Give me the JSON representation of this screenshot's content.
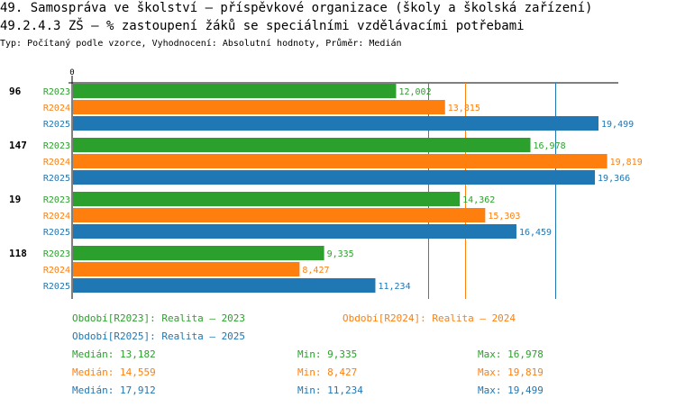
{
  "title_line1": "49. Samospráva ve školství – příspěvkové organizace (školy a školská zařízení)",
  "title_line2": "49.2.4.3 ZŠ – % zastoupení žáků se speciálními vzdělávacími potřebami",
  "subtitle": "Typ: Počítaný podle vzorce, Vyhodnocení: Absolutní hodnoty, Průměr: Medián",
  "colors": {
    "R2023": "#2ca02c",
    "R2024": "#ff7f0e",
    "R2025": "#1f77b4",
    "text": "#000000"
  },
  "chart_data": {
    "type": "bar",
    "orientation": "horizontal",
    "axis_zero_label": "0",
    "xlim": [
      0,
      20500
    ],
    "groups": [
      {
        "label": "96",
        "bars": [
          {
            "series": "R2023",
            "value": 12002,
            "label": "12,002"
          },
          {
            "series": "R2024",
            "value": 13815,
            "label": "13,815"
          },
          {
            "series": "R2025",
            "value": 19499,
            "label": "19,499"
          }
        ]
      },
      {
        "label": "147",
        "bars": [
          {
            "series": "R2023",
            "value": 16978,
            "label": "16,978"
          },
          {
            "series": "R2024",
            "value": 19819,
            "label": "19,819"
          },
          {
            "series": "R2025",
            "value": 19366,
            "label": "19,366"
          }
        ]
      },
      {
        "label": "19",
        "bars": [
          {
            "series": "R2023",
            "value": 14362,
            "label": "14,362"
          },
          {
            "series": "R2024",
            "value": 15303,
            "label": "15,303"
          },
          {
            "series": "R2025",
            "value": 16459,
            "label": "16,459"
          }
        ]
      },
      {
        "label": "118",
        "bars": [
          {
            "series": "R2023",
            "value": 9335,
            "label": "9,335"
          },
          {
            "series": "R2024",
            "value": 8427,
            "label": "8,427"
          },
          {
            "series": "R2025",
            "value": 11234,
            "label": "11,234"
          }
        ]
      }
    ],
    "median_lines": [
      {
        "series": "R2023",
        "value": 13182
      },
      {
        "series": "R2024",
        "value": 14559
      },
      {
        "series": "R2025",
        "value": 17912
      }
    ]
  },
  "legend": {
    "R2023": "Období[R2023]: Realita – 2023",
    "R2024": "Období[R2024]: Realita – 2024",
    "R2025": "Období[R2025]: Realita – 2025"
  },
  "stats": [
    {
      "series": "R2023",
      "median": "Medián: 13,182",
      "min": "Min: 9,335",
      "max": "Max: 16,978"
    },
    {
      "series": "R2024",
      "median": "Medián: 14,559",
      "min": "Min: 8,427",
      "max": "Max: 19,819"
    },
    {
      "series": "R2025",
      "median": "Medián: 17,912",
      "min": "Min: 11,234",
      "max": "Max: 19,499"
    }
  ]
}
